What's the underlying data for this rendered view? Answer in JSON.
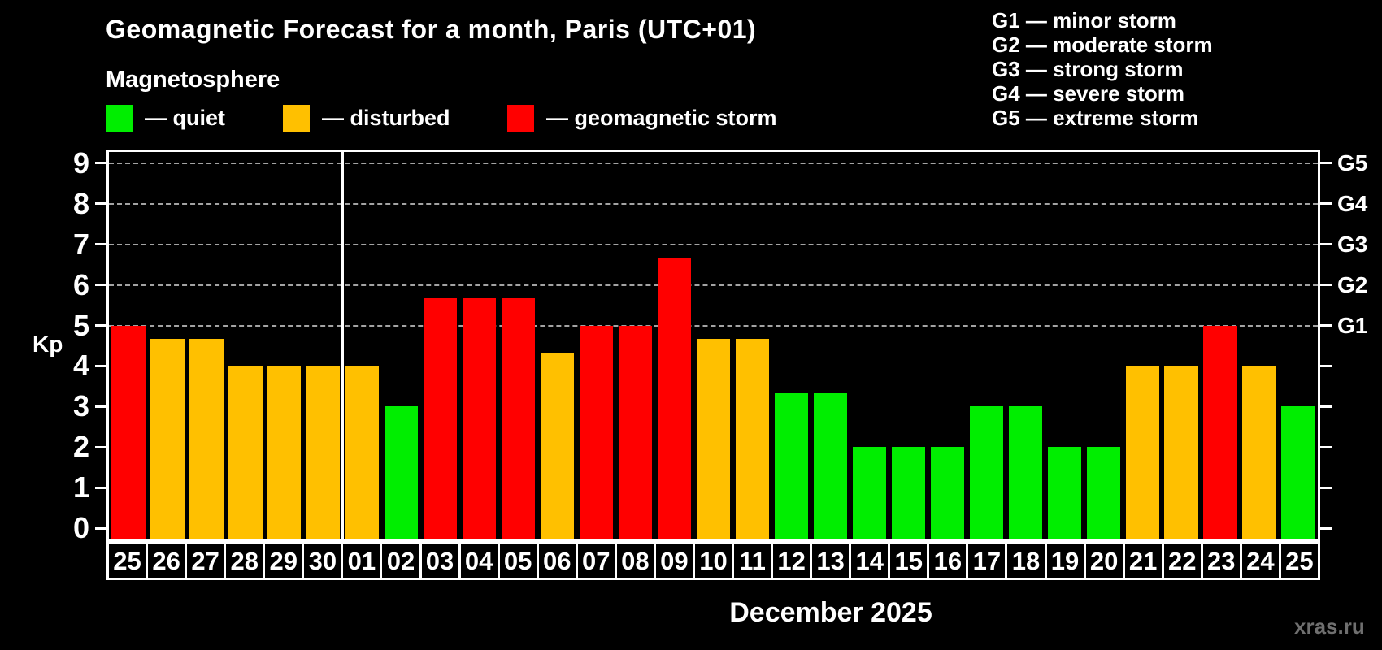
{
  "header": {
    "title": "Geomagnetic Forecast for a month, Paris (UTC+01)",
    "subtitle": "Magnetosphere",
    "watermark": "xras.ru"
  },
  "legend": {
    "items": [
      {
        "name": "quiet",
        "label": "— quiet",
        "color": "#00ee00"
      },
      {
        "name": "disturbed",
        "label": "— disturbed",
        "color": "#ffc000"
      },
      {
        "name": "storm",
        "label": "— geomagnetic storm",
        "color": "#ff0000"
      }
    ]
  },
  "g_scale_legend": [
    "G1 — minor storm",
    "G2 — moderate storm",
    "G3 — strong storm",
    "G4 — severe storm",
    "G5 — extreme storm"
  ],
  "chart_data": {
    "type": "bar",
    "title": "Geomagnetic Forecast for a month, Paris (UTC+01)",
    "subtitle": "Magnetosphere",
    "xlabel": "December 2025",
    "ylabel": "Kp",
    "ylim": [
      0,
      9
    ],
    "yticks": [
      0,
      1,
      2,
      3,
      4,
      5,
      6,
      7,
      8,
      9
    ],
    "gridlines_at": [
      5,
      6,
      7,
      8,
      9
    ],
    "grid": "dashed horizontal lines at Kp 5-9 only",
    "legend_position": "top-left swatches; G-scale text top-right",
    "right_axis": [
      {
        "kp": 5,
        "label": "G1"
      },
      {
        "kp": 6,
        "label": "G2"
      },
      {
        "kp": 7,
        "label": "G3"
      },
      {
        "kp": 8,
        "label": "G4"
      },
      {
        "kp": 9,
        "label": "G5"
      }
    ],
    "month_separator_after_index": 5,
    "categories": [
      "25",
      "26",
      "27",
      "28",
      "29",
      "30",
      "01",
      "02",
      "03",
      "04",
      "05",
      "06",
      "07",
      "08",
      "09",
      "10",
      "11",
      "12",
      "13",
      "14",
      "15",
      "16",
      "17",
      "18",
      "19",
      "20",
      "21",
      "22",
      "23",
      "24",
      "25"
    ],
    "values": [
      5,
      4.67,
      4.67,
      4,
      4,
      4,
      4,
      3,
      5.67,
      5.67,
      5.67,
      4.33,
      5,
      5,
      6.67,
      4.67,
      4.67,
      3.33,
      3.33,
      2,
      2,
      2,
      3,
      3,
      2,
      2,
      4,
      4,
      5,
      4,
      3
    ],
    "statuses": [
      "storm",
      "disturbed",
      "disturbed",
      "disturbed",
      "disturbed",
      "disturbed",
      "disturbed",
      "quiet",
      "storm",
      "storm",
      "storm",
      "disturbed",
      "storm",
      "storm",
      "storm",
      "disturbed",
      "disturbed",
      "quiet",
      "quiet",
      "quiet",
      "quiet",
      "quiet",
      "quiet",
      "quiet",
      "quiet",
      "quiet",
      "disturbed",
      "disturbed",
      "storm",
      "disturbed",
      "quiet"
    ],
    "colors": {
      "quiet": "#00ee00",
      "disturbed": "#ffc000",
      "storm": "#ff0000"
    }
  }
}
